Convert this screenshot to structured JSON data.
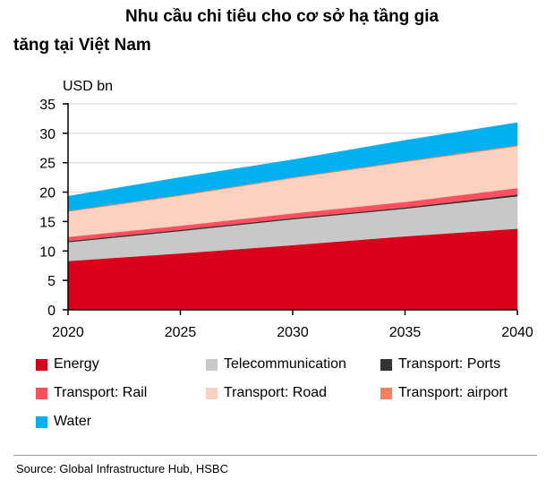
{
  "title_line1": "Nhu cầu chi tiêu cho cơ sở hạ tầng gia",
  "title_line2": "tăng tại Việt Nam",
  "source": "Source:  Global Infrastructure Hub, HSBC",
  "chart_data": {
    "type": "area",
    "stacked": true,
    "ylabel": "USD bn",
    "xlim": [
      2020,
      2040
    ],
    "ylim": [
      0,
      35
    ],
    "x": [
      2020,
      2025,
      2030,
      2035,
      2040
    ],
    "xticks": [
      2020,
      2025,
      2030,
      2035,
      2040
    ],
    "yticks": [
      0,
      5,
      10,
      15,
      20,
      25,
      30,
      35
    ],
    "grid": "horizontal",
    "legend_position": "bottom",
    "series": [
      {
        "name": "Energy",
        "color": "#d9001b",
        "values": [
          8.3,
          9.6,
          11.0,
          12.5,
          13.8
        ]
      },
      {
        "name": "Telecommunication",
        "color": "#c8c8c8",
        "values": [
          3.2,
          3.8,
          4.4,
          4.7,
          5.5
        ]
      },
      {
        "name": "Transport: Ports",
        "color": "#333333",
        "values": [
          0.2,
          0.2,
          0.2,
          0.2,
          0.3
        ]
      },
      {
        "name": "Transport: Rail",
        "color": "#ff5060",
        "values": [
          0.7,
          0.7,
          0.8,
          0.95,
          1.1
        ]
      },
      {
        "name": "Transport: Road",
        "color": "#fbd2bf",
        "values": [
          4.3,
          5.1,
          6.0,
          6.8,
          7.1
        ]
      },
      {
        "name": "Transport: airport",
        "color": "#f4835a",
        "values": [
          0.15,
          0.15,
          0.15,
          0.15,
          0.2
        ]
      },
      {
        "name": "Water",
        "color": "#00b0f0",
        "values": [
          2.45,
          2.95,
          2.95,
          3.5,
          3.8
        ]
      }
    ]
  }
}
